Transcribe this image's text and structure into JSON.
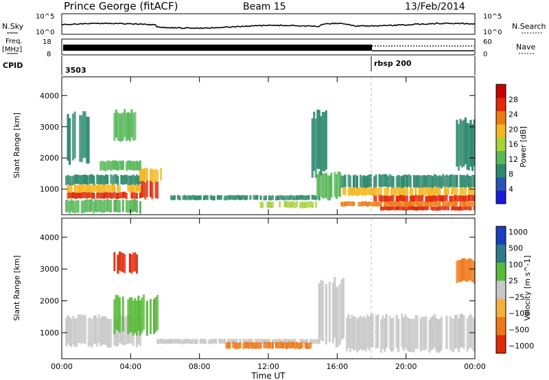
{
  "header": {
    "station": "Prince George (fitACF)",
    "beam": "Beam 15",
    "date": "13/Feb/2014"
  },
  "status_panel": {
    "nsky_label": "N.Sky",
    "nsky_ticks": [
      "10^5",
      "10^0"
    ],
    "nsearch_label": "N.Search",
    "nsearch_ticks": [
      "10^5",
      "10^0"
    ],
    "freq_label": "Freq.",
    "freq_unit": "[MHz]",
    "freq_ticks": [
      "18",
      "8"
    ],
    "nave_label": "Nave",
    "nave_ticks": [
      "60",
      "0"
    ],
    "cpid_label": "CPID",
    "cpid_segments": [
      {
        "start_hour": 0,
        "label": "3503"
      },
      {
        "start_hour": 18,
        "label": "rbsp 200"
      }
    ]
  },
  "chart_data": [
    {
      "type": "heatmap",
      "name": "power",
      "ylabel": "Slant Range [km]",
      "x_range_hours": [
        0,
        24
      ],
      "ylim": [
        180,
        4600
      ],
      "y_ticks": [
        "1000",
        "2000",
        "3000",
        "4000"
      ],
      "colorbar": {
        "label": "Power [dB]",
        "min": 0,
        "max": 32,
        "tick_values": [
          4,
          8,
          12,
          16,
          20,
          24,
          28
        ],
        "tick_labels": [
          "4",
          "8",
          "12",
          "16",
          "20",
          "24",
          "28"
        ],
        "colors": [
          "#1a1adc",
          "#2a55b4",
          "#2f8a6e",
          "#58b85a",
          "#a8d23a",
          "#f5b720",
          "#f07a10",
          "#e02a0a",
          "#c80000"
        ]
      },
      "bands": [
        {
          "start": 0.2,
          "end": 4.6,
          "lo": 700,
          "hi": 900,
          "value": 28
        },
        {
          "start": 0.2,
          "end": 4.6,
          "lo": 900,
          "hi": 1150,
          "value": 18
        },
        {
          "start": 0.2,
          "end": 4.6,
          "lo": 1150,
          "hi": 1450,
          "value": 8
        },
        {
          "start": 4.6,
          "end": 5.6,
          "lo": 700,
          "hi": 1250,
          "value": 28
        },
        {
          "start": 4.2,
          "end": 5.8,
          "lo": 1250,
          "hi": 1650,
          "value": 18
        },
        {
          "start": 2.2,
          "end": 4.6,
          "lo": 1600,
          "hi": 1900,
          "value": 14
        },
        {
          "start": 0.2,
          "end": 4.6,
          "lo": 250,
          "hi": 650,
          "value": 14
        },
        {
          "start": 6.2,
          "end": 15.0,
          "lo": 650,
          "hi": 800,
          "value": 10
        },
        {
          "start": 11.5,
          "end": 14.8,
          "lo": 400,
          "hi": 600,
          "value": 16
        },
        {
          "start": 14.8,
          "end": 16.2,
          "lo": 700,
          "hi": 1500,
          "value": 14
        },
        {
          "start": 14.5,
          "end": 15.4,
          "lo": 1500,
          "hi": 3400,
          "value": 8
        },
        {
          "start": 16.2,
          "end": 24.0,
          "lo": 1050,
          "hi": 1450,
          "value": 8
        },
        {
          "start": 16.2,
          "end": 24.0,
          "lo": 800,
          "hi": 1050,
          "value": 18
        },
        {
          "start": 18.0,
          "end": 24.0,
          "lo": 600,
          "hi": 800,
          "value": 28
        },
        {
          "start": 18.5,
          "end": 24.0,
          "lo": 320,
          "hi": 450,
          "value": 28
        },
        {
          "start": 16.2,
          "end": 24.0,
          "lo": 450,
          "hi": 600,
          "value": 22
        },
        {
          "start": 3.0,
          "end": 4.4,
          "lo": 2600,
          "hi": 3500,
          "value": 12
        },
        {
          "start": 0.3,
          "end": 1.6,
          "lo": 1900,
          "hi": 3400,
          "value": 8
        },
        {
          "start": 22.8,
          "end": 24.0,
          "lo": 1700,
          "hi": 3200,
          "value": 10
        }
      ]
    },
    {
      "type": "heatmap",
      "name": "velocity",
      "ylabel": "Slant Range [km]",
      "x_range_hours": [
        0,
        24
      ],
      "ylim": [
        180,
        4600
      ],
      "y_ticks": [
        "1000",
        "2000",
        "3000",
        "4000"
      ],
      "colorbar": {
        "label": "Velocity [m s^-1]",
        "tick_labels": [
          "1000",
          "500",
          "100",
          "25",
          "−25",
          "−100",
          "−500",
          "−1000"
        ],
        "colors": [
          "#1a3fbf",
          "#2f7a8a",
          "#5aba3a",
          "#c8c8c8",
          "#f5b040",
          "#f07818",
          "#e02a0a"
        ]
      },
      "bands": [
        {
          "start": 0.2,
          "end": 4.6,
          "lo": 600,
          "hi": 1500,
          "value": "ground"
        },
        {
          "start": 3.0,
          "end": 5.6,
          "lo": 1000,
          "hi": 2100,
          "value": 100
        },
        {
          "start": 5.5,
          "end": 15.0,
          "lo": 650,
          "hi": 800,
          "value": "ground"
        },
        {
          "start": 9.5,
          "end": 14.5,
          "lo": 500,
          "hi": 700,
          "value": -100
        },
        {
          "start": 14.8,
          "end": 16.4,
          "lo": 700,
          "hi": 2600,
          "value": "ground"
        },
        {
          "start": 16.2,
          "end": 24.0,
          "lo": 450,
          "hi": 1500,
          "value": "ground"
        },
        {
          "start": 3.0,
          "end": 4.4,
          "lo": 2900,
          "hi": 3500,
          "value": -500
        },
        {
          "start": 22.8,
          "end": 24.0,
          "lo": 2600,
          "hi": 3300,
          "value": -100
        }
      ]
    }
  ],
  "x_axis": {
    "title": "Time UT",
    "tick_labels": [
      "00:00",
      "04:00",
      "08:00",
      "12:00",
      "16:00",
      "20:00",
      "00:00"
    ]
  }
}
